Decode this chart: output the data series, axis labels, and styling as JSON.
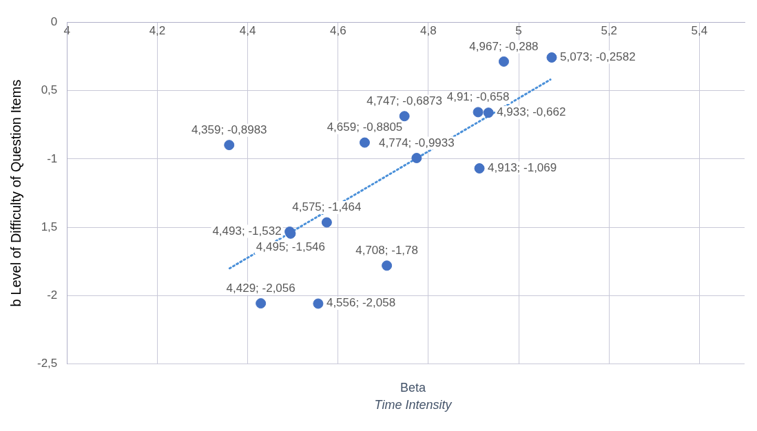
{
  "chart_data": {
    "type": "scatter",
    "xlabel": "Beta",
    "ylabel": "b Level of Difficulty of Question Items",
    "annotations": [
      "Time Intensity"
    ],
    "xlim": [
      4,
      5.5
    ],
    "xticks": [
      {
        "value": 4,
        "label": "4"
      },
      {
        "value": 4.2,
        "label": "4,2"
      },
      {
        "value": 4.4,
        "label": "4,4"
      },
      {
        "value": 4.6,
        "label": "4,6"
      },
      {
        "value": 4.8,
        "label": "4,8"
      },
      {
        "value": 5,
        "label": "5"
      },
      {
        "value": 5.2,
        "label": "5,2"
      },
      {
        "value": 5.4,
        "label": "5,4"
      }
    ],
    "ylim": [
      -2.5,
      0
    ],
    "yticks": [
      0,
      {
        "value": -0.5,
        "label": "0,5"
      },
      -1,
      {
        "value": -1.5,
        "label": "1,5"
      },
      -2,
      {
        "value": -2.5,
        "label": "-2,5"
      }
    ],
    "grid": true,
    "legend": false,
    "marker": "circle",
    "series": [
      {
        "color": "#4472c4",
        "x": [
          4.359,
          4.659,
          4.747,
          4.774,
          4.913,
          4.91,
          4.933,
          4.967,
          5.073,
          4.493,
          4.495,
          4.575,
          4.708,
          4.429,
          4.556
        ],
        "values": [
          -0.8983,
          -0.8805,
          -0.6873,
          -0.9933,
          -1.069,
          -0.658,
          -0.662,
          -0.288,
          -0.2582,
          -1.532,
          -1.546,
          -1.464,
          -1.78,
          -2.056,
          -2.058
        ],
        "value_labels": [
          "4,359; -0,8983",
          "4,659; -0,8805",
          "4,747; -0,6873",
          "4,774; -0,9933",
          "4,913; -1,069",
          "4,91; -0,658",
          "4,933; -0,662",
          "4,967; -0,288",
          "5,073; -0,2582",
          "4,493; -1,532",
          "4,495; -1,546",
          "4,575; -1,464",
          "4,708; -1,78",
          "4,429; -2,056",
          "4,556; -2,058"
        ]
      },
      {
        "type": "line",
        "color": "#4a90d9",
        "line_style": "dotted",
        "marker": "none",
        "x": [
          4.36,
          5.07
        ],
        "values": [
          -1.8,
          -0.42
        ]
      }
    ]
  }
}
